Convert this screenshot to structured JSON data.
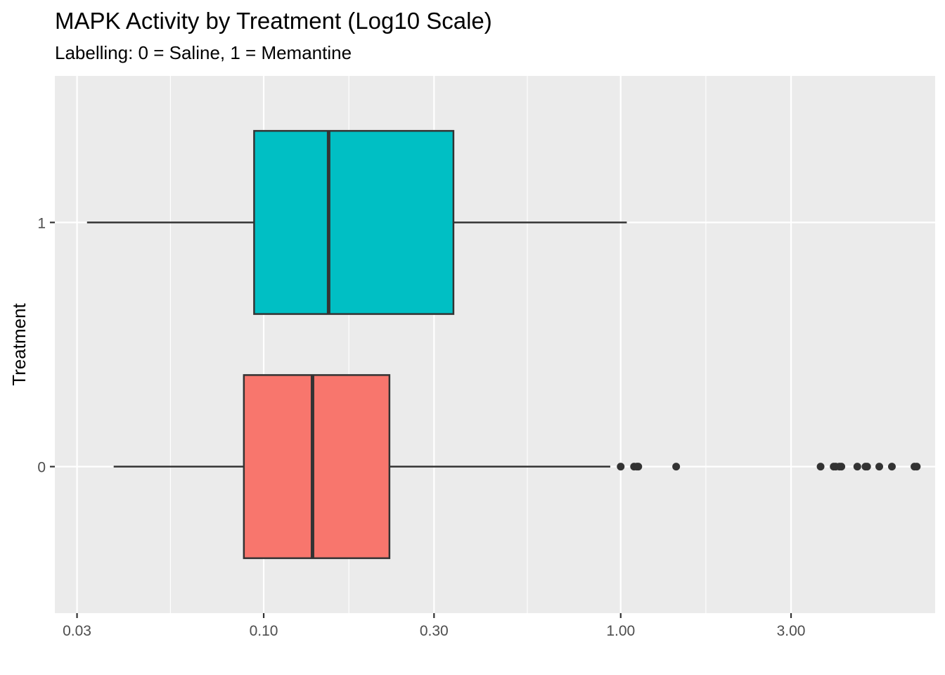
{
  "chart_data": {
    "type": "boxplot",
    "orientation": "horizontal",
    "title": "MAPK Activity by Treatment (Log10 Scale)",
    "subtitle": "Labelling: 0 = Saline, 1 = Memantine",
    "xlabel": "",
    "ylabel": "Treatment",
    "x_scale": "log10",
    "xlim": [
      0.026,
      7.6
    ],
    "x_ticks": [
      {
        "value": 0.03,
        "label": "0.03"
      },
      {
        "value": 0.1,
        "label": "0.10"
      },
      {
        "value": 0.3,
        "label": "0.30"
      },
      {
        "value": 1.0,
        "label": "1.00"
      },
      {
        "value": 3.0,
        "label": "3.00"
      }
    ],
    "x_minor_breaks": [
      0.0548,
      0.1732,
      0.5477,
      1.7321
    ],
    "categories": [
      "0",
      "1"
    ],
    "grid": true,
    "legend": "none",
    "series": [
      {
        "category": "0",
        "color": "#F8766D",
        "whisker_low": 0.038,
        "q1": 0.088,
        "median": 0.137,
        "q3": 0.225,
        "whisker_high": 0.935,
        "outliers": [
          1.0,
          1.09,
          1.11,
          1.12,
          1.43,
          3.63,
          3.95,
          4.0,
          4.1,
          4.15,
          4.6,
          4.85,
          4.9,
          5.3,
          5.75,
          6.65,
          6.75
        ]
      },
      {
        "category": "1",
        "color": "#00BFC4",
        "whisker_low": 0.032,
        "q1": 0.094,
        "median": 0.152,
        "q3": 0.34,
        "whisker_high": 1.04,
        "outliers": []
      }
    ]
  }
}
